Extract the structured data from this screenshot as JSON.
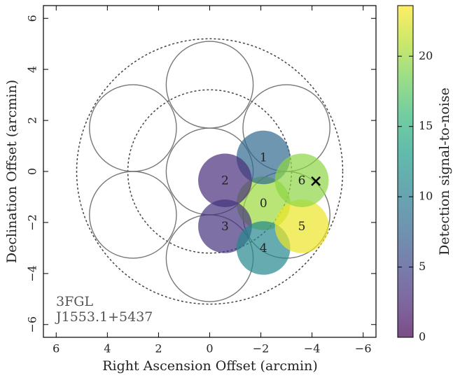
{
  "chart_data": {
    "type": "scatter",
    "xlabel": "Right Ascension Offset (arcmin)",
    "ylabel": "Declination Offset (arcmin)",
    "xlim": [
      6.5,
      -6.5
    ],
    "ylim": [
      -6.5,
      6.5
    ],
    "xticks": [
      6,
      4,
      2,
      0,
      {
        "value": -2,
        "label": "−2"
      },
      {
        "value": -4,
        "label": "−4"
      },
      {
        "value": -6,
        "label": "−6"
      }
    ],
    "yticks": [
      {
        "value": -6,
        "label": "−6"
      },
      {
        "value": -4,
        "label": "−4"
      },
      {
        "value": -2,
        "label": "−2"
      },
      0,
      2,
      4,
      6
    ],
    "annotation": [
      "3FGL",
      "J1553.1+5437"
    ],
    "pointings": {
      "x": [
        0,
        0,
        3.0,
        3.0,
        0,
        -3.0,
        -3.0
      ],
      "y": [
        0,
        3.4,
        1.7,
        -1.7,
        -3.4,
        -1.7,
        1.7
      ],
      "radius": 1.7,
      "color": "#777777"
    },
    "rings": {
      "radii": [
        3.2,
        5.2
      ],
      "color": "#444444"
    },
    "points": {
      "labels": [
        "0",
        "1",
        "2",
        "3",
        "4",
        "5",
        "6"
      ],
      "x": [
        -2.1,
        -2.1,
        -0.6,
        -0.6,
        -2.1,
        -3.6,
        -3.6
      ],
      "y": [
        -1.25,
        0.55,
        -0.35,
        -2.15,
        -3.0,
        -2.15,
        -0.35
      ],
      "snr": [
        20,
        8,
        3,
        3.5,
        11,
        23,
        19.5
      ],
      "radius": 1.05,
      "alpha": 0.7
    },
    "source": {
      "x": -4.15,
      "y": -0.38,
      "marker": "x",
      "color": "#000000"
    },
    "colorbar": {
      "label": "Detection signal-to-noise",
      "colormap": "viridis",
      "lim": [
        0,
        23.6
      ],
      "ticks": [
        0,
        5,
        10,
        15,
        20
      ]
    }
  }
}
